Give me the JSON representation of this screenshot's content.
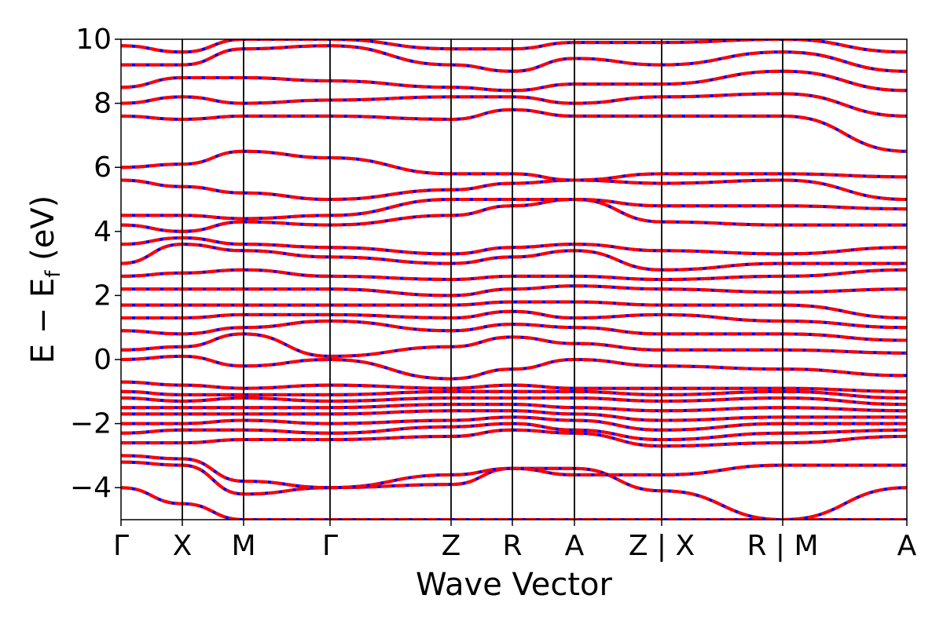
{
  "chart_data": {
    "type": "line",
    "title": "",
    "xlabel": "Wave Vector",
    "ylabel": "E − E_f (eV)",
    "ylabel_main": "E − E",
    "ylabel_sub": "f",
    "ylabel_tail": " (eV)",
    "ylim": [
      -5,
      10
    ],
    "yticks": [
      -4,
      -2,
      0,
      2,
      4,
      6,
      8,
      10
    ],
    "ytick_labels": [
      "−4",
      "−2",
      "0",
      "2",
      "4",
      "6",
      "8",
      "10"
    ],
    "grid": false,
    "legend": "none",
    "segments": [
      {
        "x0": 0.0,
        "x1": 0.465,
        "labels": [
          "Γ",
          "X",
          "M",
          "Γ",
          "Z",
          "R",
          "A",
          "Z"
        ]
      },
      {
        "x0": 0.465,
        "x1": 0.6,
        "labels": [
          "X",
          "R"
        ]
      },
      {
        "x0": 0.6,
        "x1": 0.735,
        "labels": [
          "M",
          "A"
        ]
      }
    ],
    "kpoints": [
      {
        "x": 0.0,
        "label": "Γ"
      },
      {
        "x": 0.078,
        "label": "X"
      },
      {
        "x": 0.156,
        "label": "M"
      },
      {
        "x": 0.266,
        "label": "Γ"
      },
      {
        "x": 0.42,
        "label": "Z"
      },
      {
        "x": 0.498,
        "label": "R"
      },
      {
        "x": 0.577,
        "label": "A"
      },
      {
        "x": 0.688,
        "label": "Z | X"
      },
      {
        "x": 0.842,
        "label": "R | M"
      },
      {
        "x": 1.0,
        "label": "A"
      }
    ],
    "series": [
      {
        "color": "#0000ff",
        "style": "solid"
      },
      {
        "color": "#ff0000",
        "style": "dashed"
      }
    ],
    "bands": [
      [
        -4.0,
        -4.5,
        -5.0,
        -5.0,
        -5.0,
        -5.0,
        -5.0,
        -5.0,
        -5.0,
        -5.0
      ],
      [
        -3.2,
        -3.3,
        -4.2,
        -4.0,
        -3.9,
        -3.4,
        -3.4,
        -4.1,
        -5.0,
        -4.0
      ],
      [
        -3.0,
        -3.1,
        -3.8,
        -4.0,
        -3.6,
        -3.4,
        -3.6,
        -3.6,
        -3.3,
        -3.3
      ],
      [
        -2.6,
        -2.6,
        -2.5,
        -2.5,
        -2.4,
        -2.2,
        -2.3,
        -2.7,
        -2.6,
        -2.4
      ],
      [
        -2.3,
        -2.2,
        -2.2,
        -2.3,
        -2.1,
        -2.0,
        -2.2,
        -2.5,
        -2.3,
        -2.2
      ],
      [
        -2.0,
        -2.0,
        -1.9,
        -2.0,
        -1.9,
        -1.8,
        -1.9,
        -2.2,
        -2.0,
        -2.0
      ],
      [
        -1.7,
        -1.7,
        -1.7,
        -1.7,
        -1.6,
        -1.6,
        -1.7,
        -1.9,
        -1.8,
        -1.8
      ],
      [
        -1.5,
        -1.5,
        -1.5,
        -1.5,
        -1.4,
        -1.4,
        -1.5,
        -1.6,
        -1.5,
        -1.6
      ],
      [
        -1.2,
        -1.3,
        -1.2,
        -1.3,
        -1.2,
        -1.2,
        -1.2,
        -1.3,
        -1.2,
        -1.4
      ],
      [
        -1.0,
        -1.1,
        -1.1,
        -1.1,
        -1.0,
        -1.0,
        -1.0,
        -1.1,
        -1.0,
        -1.2
      ],
      [
        -0.7,
        -0.8,
        -0.9,
        -0.8,
        -0.9,
        -0.8,
        -0.9,
        -0.9,
        -0.9,
        -1.0
      ],
      [
        0.0,
        0.1,
        -0.2,
        0.0,
        -0.6,
        -0.3,
        0.0,
        -0.2,
        -0.3,
        -0.5
      ],
      [
        0.3,
        0.4,
        0.8,
        0.1,
        0.4,
        0.7,
        0.5,
        0.3,
        0.3,
        0.2
      ],
      [
        0.9,
        0.8,
        1.0,
        1.2,
        0.9,
        1.1,
        1.0,
        0.8,
        0.8,
        0.6
      ],
      [
        1.3,
        1.3,
        1.4,
        1.4,
        1.3,
        1.5,
        1.3,
        1.4,
        1.2,
        1.0
      ],
      [
        1.7,
        1.7,
        1.7,
        1.7,
        1.7,
        1.8,
        1.8,
        1.7,
        1.7,
        1.3
      ],
      [
        2.2,
        2.2,
        2.2,
        2.2,
        2.0,
        2.2,
        2.3,
        2.2,
        2.1,
        2.2
      ],
      [
        2.6,
        2.7,
        2.8,
        2.6,
        2.5,
        2.6,
        2.6,
        2.5,
        2.6,
        2.8
      ],
      [
        3.0,
        3.6,
        3.4,
        3.2,
        3.0,
        3.2,
        3.4,
        2.8,
        3.0,
        3.0
      ],
      [
        3.6,
        3.8,
        3.6,
        3.5,
        3.3,
        3.5,
        3.6,
        3.4,
        3.3,
        3.5
      ],
      [
        4.2,
        4.0,
        4.3,
        4.2,
        4.5,
        4.8,
        5.0,
        4.3,
        4.2,
        4.2
      ],
      [
        4.5,
        4.5,
        4.4,
        4.5,
        5.0,
        5.0,
        5.0,
        4.8,
        4.8,
        4.7
      ],
      [
        5.6,
        5.4,
        5.2,
        5.0,
        5.3,
        5.5,
        5.6,
        5.5,
        5.6,
        5.0
      ],
      [
        6.0,
        6.1,
        6.5,
        6.3,
        5.8,
        5.8,
        5.6,
        5.8,
        5.8,
        5.7
      ],
      [
        7.6,
        7.5,
        7.6,
        7.6,
        7.5,
        7.8,
        7.6,
        7.6,
        7.6,
        6.5
      ],
      [
        8.0,
        8.2,
        8.0,
        8.1,
        8.2,
        8.2,
        8.0,
        8.2,
        8.3,
        7.6
      ],
      [
        8.5,
        8.8,
        8.8,
        8.7,
        8.5,
        8.4,
        8.6,
        8.6,
        9.0,
        8.4
      ],
      [
        9.2,
        9.2,
        9.7,
        9.8,
        9.2,
        9.0,
        9.4,
        9.2,
        9.6,
        9.0
      ],
      [
        9.8,
        9.6,
        10.0,
        10.0,
        9.7,
        9.7,
        9.9,
        9.9,
        10.0,
        9.6
      ]
    ]
  }
}
